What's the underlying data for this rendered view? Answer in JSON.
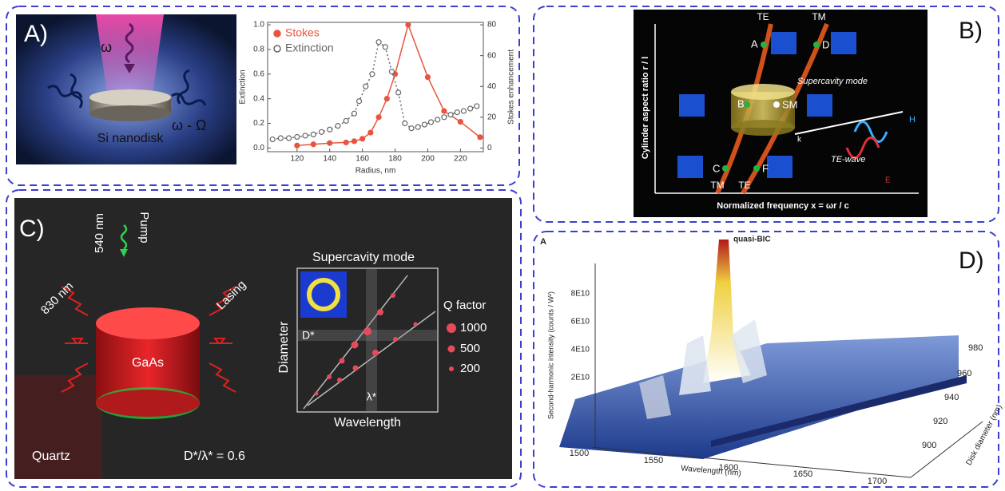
{
  "chart_data": {
    "type": "line",
    "x_label": "Radius, nm",
    "y_label": "Extinction",
    "y2_label": "Stokes enhancement",
    "xlim": [
      102,
      234
    ],
    "xticks": [
      120,
      140,
      160,
      180,
      200,
      220
    ],
    "ylim": [
      -0.03,
      1.02
    ],
    "yticks": [
      {
        "value": 0,
        "label": "0.0"
      },
      0.2,
      0.4,
      0.6,
      0.8,
      {
        "value": 1,
        "label": "1.0"
      }
    ],
    "y2lim": [
      -2.4,
      81.6
    ],
    "y2ticks": [
      0,
      20,
      40,
      60,
      80
    ],
    "legend": "upper-left",
    "series": [
      {
        "name": "Stokes",
        "color": "#e8553f",
        "marker": "filled",
        "line_style": "solid",
        "axis": "y2",
        "x": [
          120,
          130,
          140,
          150,
          155,
          160,
          165,
          170,
          175,
          180,
          188,
          200,
          210,
          220,
          232
        ],
        "values": [
          1.6,
          2.4,
          3.2,
          3.6,
          4.4,
          6,
          10,
          20,
          32,
          48,
          80,
          46,
          24,
          17,
          7
        ]
      },
      {
        "name": "Extinction",
        "color": "#666666",
        "marker": "open",
        "line_style": "dotted",
        "x": [
          105,
          110,
          115,
          120,
          125,
          130,
          135,
          140,
          145,
          150,
          155,
          158,
          162,
          166,
          170,
          174,
          178,
          182,
          186,
          190,
          194,
          198,
          202,
          206,
          210,
          214,
          218,
          222,
          226,
          230
        ],
        "values": [
          0.07,
          0.08,
          0.08,
          0.09,
          0.1,
          0.11,
          0.13,
          0.15,
          0.18,
          0.22,
          0.28,
          0.38,
          0.5,
          0.6,
          0.86,
          0.82,
          0.62,
          0.45,
          0.2,
          0.16,
          0.17,
          0.19,
          0.21,
          0.23,
          0.25,
          0.27,
          0.29,
          0.3,
          0.32,
          0.34
        ]
      }
    ]
  },
  "panel_a": {
    "label": "A)",
    "omega": "ω",
    "omega_shift": "ω - Ω",
    "disk": "Si nanodisk"
  },
  "panel_b": {
    "label": "B)",
    "te_top": "TE",
    "tm_top": "TM",
    "point_a": "A",
    "point_d": "D",
    "supercavity": "Supercavity mode",
    "point_b": "B",
    "sm": "SM",
    "k": "k",
    "te_wave": "TE-wave",
    "h": "H",
    "e": "E",
    "point_c": "C",
    "point_f": "F",
    "tm_bottom": "TM",
    "te_bottom": "TE",
    "y_label": "Cylinder aspect ratio r / l",
    "x_label": "Normalized frequency x = ωr / c"
  },
  "panel_c": {
    "label": "C)",
    "pump_wavelength": "540 nm",
    "pump": "Pump",
    "emission": "830 nm",
    "lasing": "Lasing",
    "material": "GaAs",
    "substrate": "Quartz",
    "ratio": "D*/λ* = 0.6",
    "inset_title": "Supercavity mode",
    "diameter": "Diameter",
    "d_star": "D*",
    "lambda_star": "λ*",
    "wavelength": "Wavelength",
    "q_title": "Q factor",
    "q_levels": [
      "1000",
      "500",
      "200"
    ]
  },
  "panel_d": {
    "label": "D)",
    "sub_label": "A",
    "peak": "quasi-BIC",
    "z_label": "Second-harmonic intensity (counts / W²)",
    "z_ticks": [
      "8E10",
      "6E10",
      "4E10",
      "2E10"
    ],
    "x_ticks": [
      "1500",
      "1550",
      "1600",
      "1650",
      "1700"
    ],
    "x_label": "Wavelength (nm)",
    "y_ticks": [
      "980",
      "960",
      "940",
      "920",
      "900"
    ],
    "y_label": "Disk diameter (nm)"
  }
}
